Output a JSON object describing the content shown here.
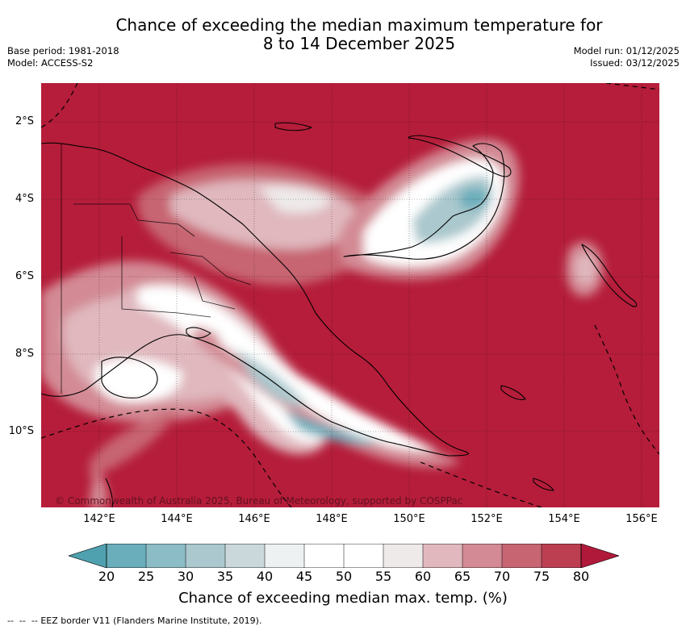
{
  "title": {
    "line1": "Chance of exceeding the median maximum temperature for",
    "line2": "8 to 14 December 2025"
  },
  "meta_left": {
    "base_period": "Base period: 1981-2018",
    "model": "Model: ACCESS-S2"
  },
  "meta_right": {
    "model_run": "Model run: 01/12/2025",
    "issued": "Issued: 03/12/2025"
  },
  "copyright": "© Commonwealth of Australia 2025, Bureau of Meteorology, supported by COSPPac",
  "lat_labels": [
    "2°S",
    "4°S",
    "6°S",
    "8°S",
    "10°S"
  ],
  "lon_labels": [
    "142°E",
    "144°E",
    "146°E",
    "148°E",
    "150°E",
    "152°E",
    "154°E",
    "156°E"
  ],
  "colorbar": {
    "ticks": [
      "20",
      "25",
      "30",
      "35",
      "40",
      "45",
      "50",
      "55",
      "60",
      "65",
      "70",
      "75",
      "80"
    ],
    "colors": [
      "#4fa1af",
      "#6aaebb",
      "#8cbcc6",
      "#aac8cd",
      "#cad8dc",
      "#edf1f2",
      "#ffffff",
      "#ffffff",
      "#eeeaea",
      "#e0b8be",
      "#d38a94",
      "#c76572",
      "#bb3f51",
      "#b0193a"
    ],
    "label": "Chance of exceeding median max. temp. (%)"
  },
  "legend_eez": "EEZ border V11 (Flanders Marine Institute, 2019)."
}
